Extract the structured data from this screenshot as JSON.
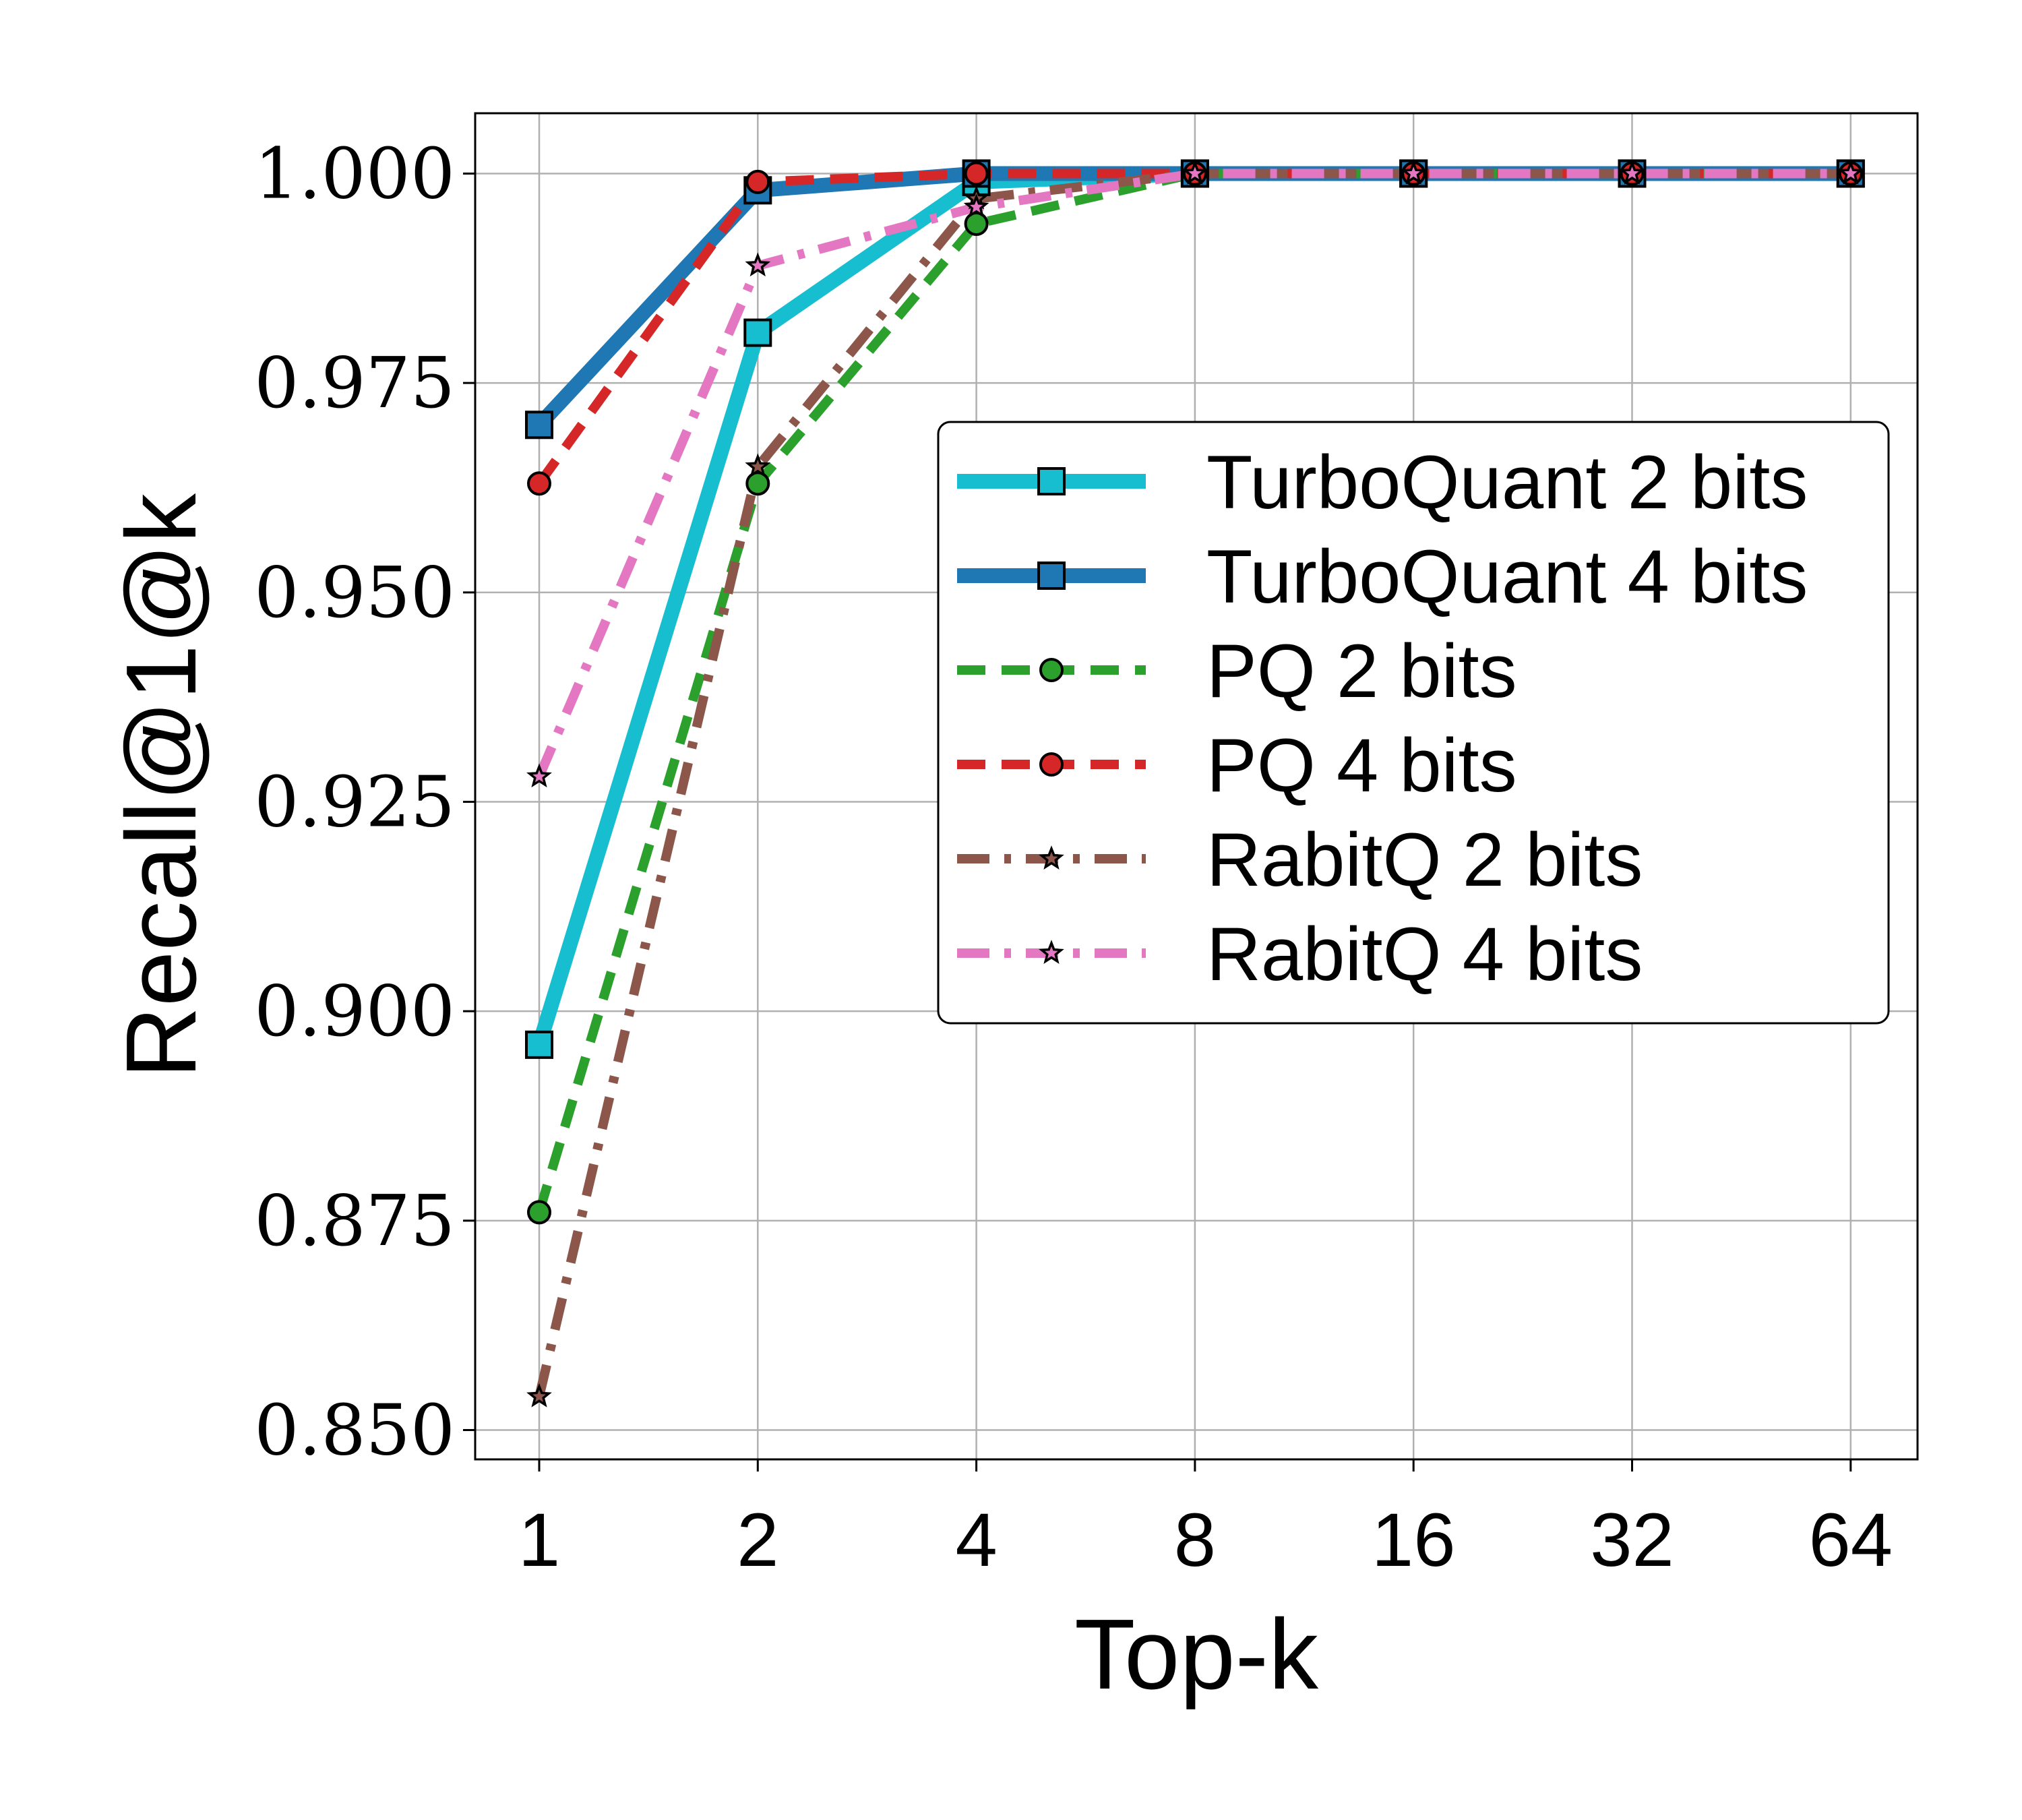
{
  "chart_data": {
    "type": "line",
    "xlabel": "Top-k",
    "ylabel": "Recall@1@k",
    "x": [
      1,
      2,
      4,
      8,
      16,
      32,
      64
    ],
    "x_scale": "log2",
    "ylim": [
      0.8465,
      1.0072
    ],
    "yticks": [
      "0.850",
      "0.875",
      "0.900",
      "0.925",
      "0.950",
      "0.975",
      "1.000"
    ],
    "grid": true,
    "legend_position": "center-right",
    "series": [
      {
        "name": "TurboQuant 2 bits",
        "values": [
          0.896,
          0.981,
          0.999,
          1.0,
          1.0,
          1.0,
          1.0
        ],
        "color": "#17becf",
        "linestyle": "solid",
        "linewidth": "thick",
        "marker": "square"
      },
      {
        "name": "TurboQuant 4 bits",
        "values": [
          0.97,
          0.998,
          1.0,
          1.0,
          1.0,
          1.0,
          1.0
        ],
        "color": "#1f77b4",
        "linestyle": "solid",
        "linewidth": "thick",
        "marker": "square"
      },
      {
        "name": "PQ 2 bits",
        "values": [
          0.876,
          0.963,
          0.994,
          1.0,
          1.0,
          1.0,
          1.0
        ],
        "color": "#2ca02c",
        "linestyle": "dashed",
        "linewidth": "medium",
        "marker": "circle"
      },
      {
        "name": "PQ 4 bits",
        "values": [
          0.963,
          0.999,
          1.0,
          1.0,
          1.0,
          1.0,
          1.0
        ],
        "color": "#d62728",
        "linestyle": "dashed",
        "linewidth": "medium",
        "marker": "circle"
      },
      {
        "name": "RabitQ 2 bits",
        "values": [
          0.854,
          0.965,
          0.997,
          1.0,
          1.0,
          1.0,
          1.0
        ],
        "color": "#8c564b",
        "linestyle": "dashdot",
        "linewidth": "medium",
        "marker": "star"
      },
      {
        "name": "RabitQ 4 bits",
        "values": [
          0.928,
          0.989,
          0.996,
          1.0,
          1.0,
          1.0,
          1.0
        ],
        "color": "#e377c2",
        "linestyle": "dashdot",
        "linewidth": "medium",
        "marker": "star"
      }
    ]
  }
}
